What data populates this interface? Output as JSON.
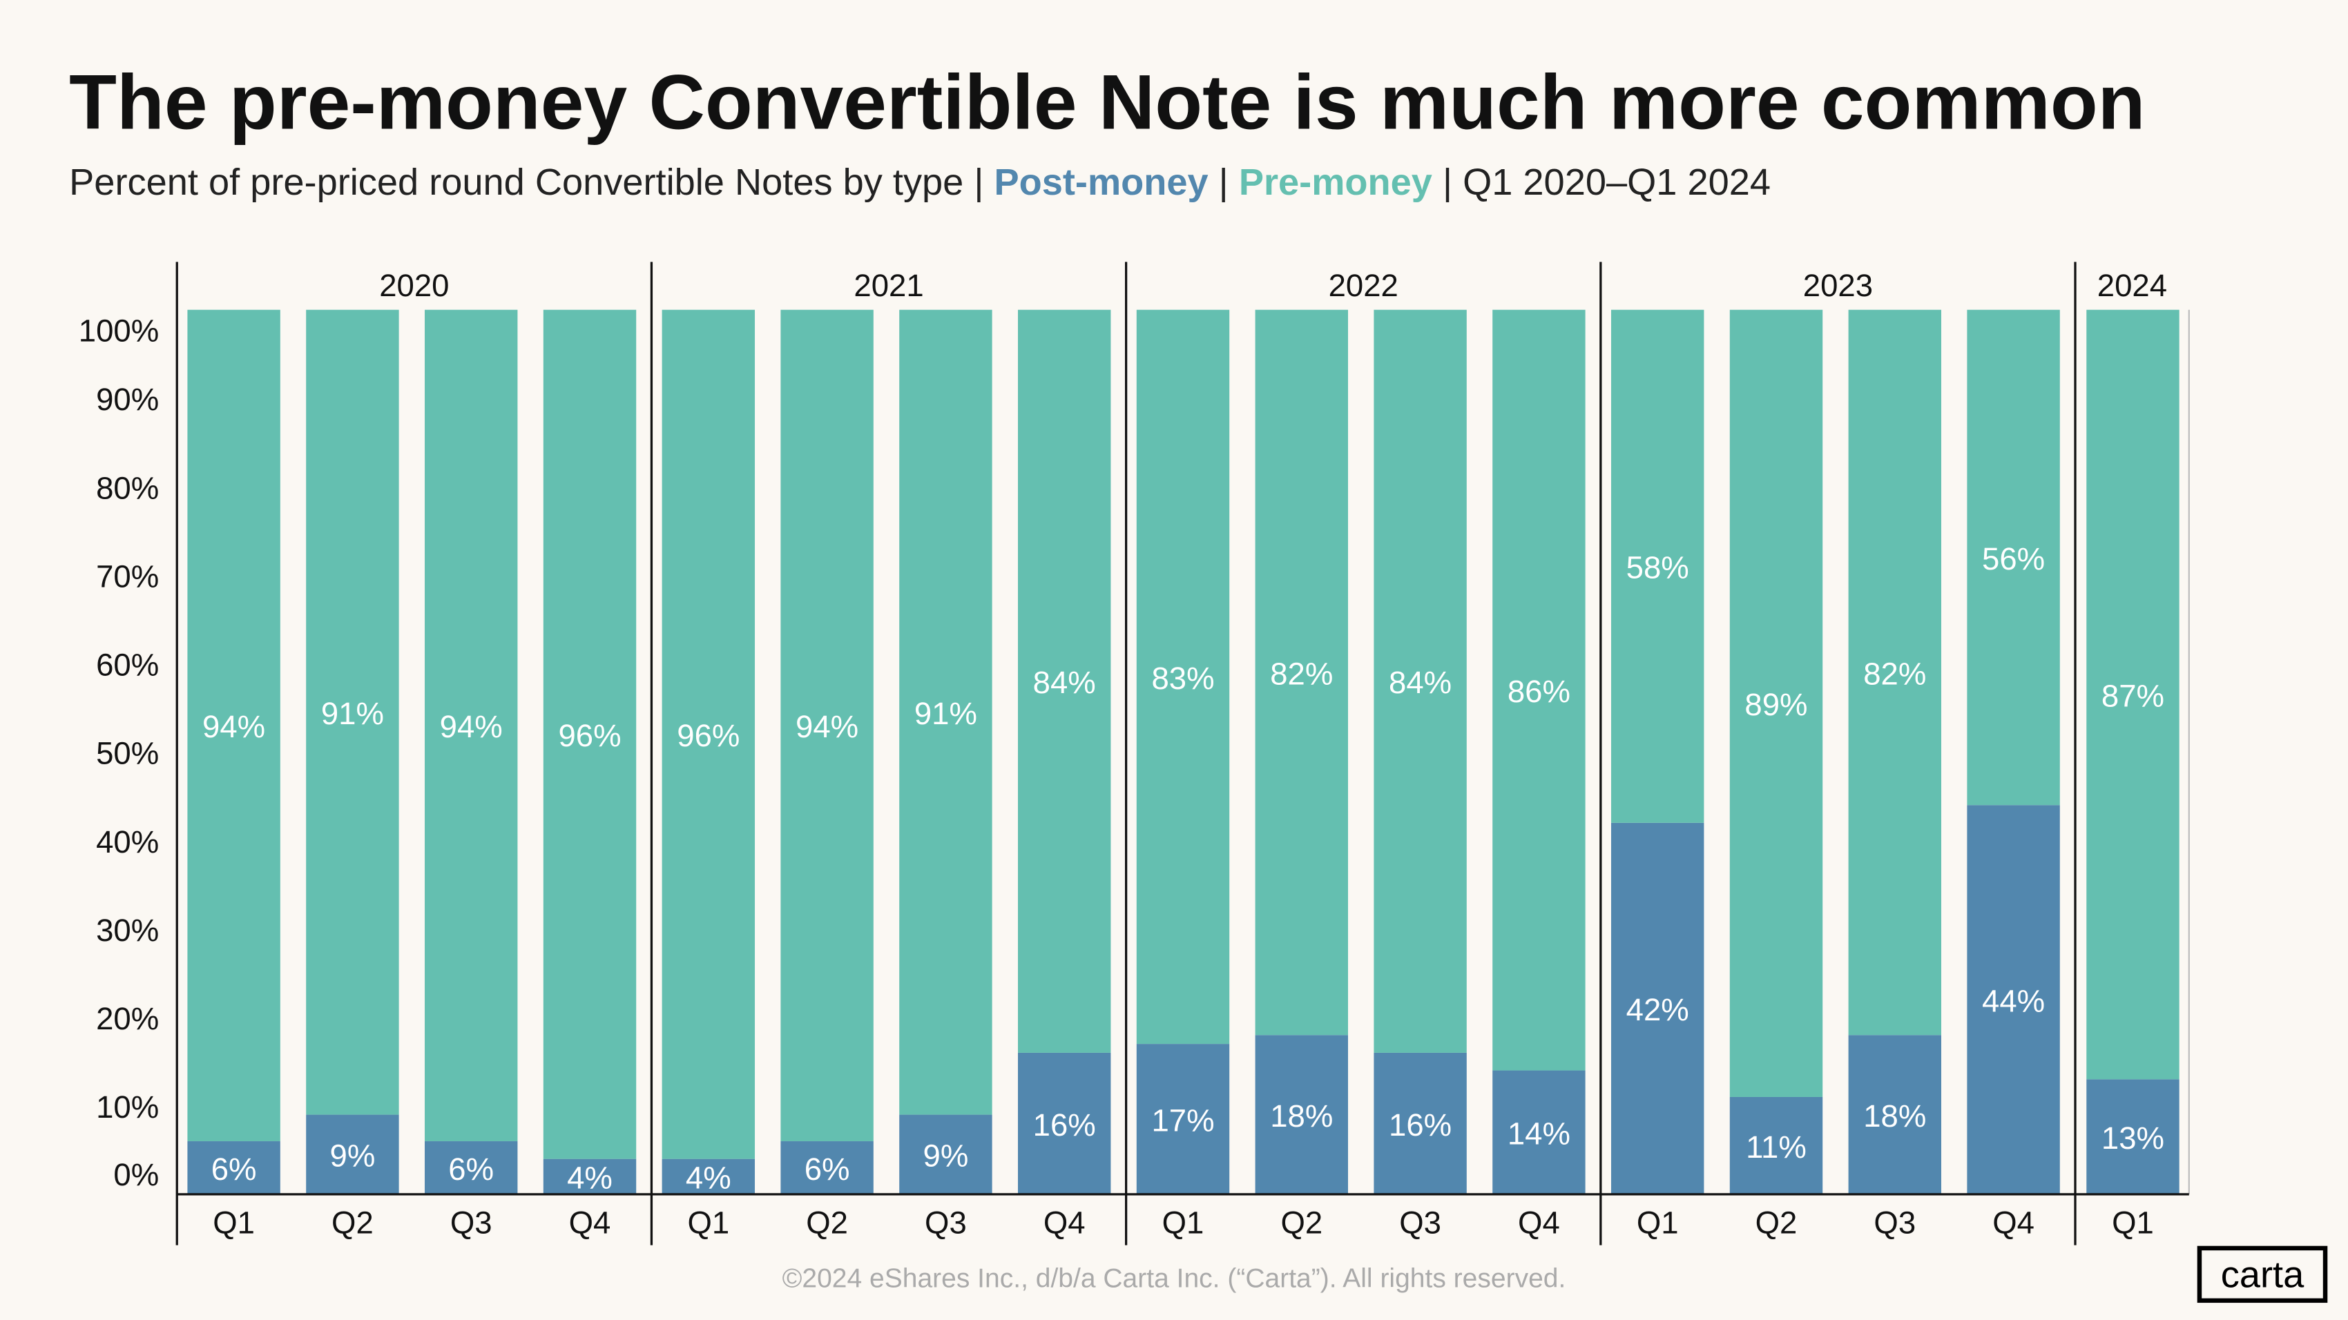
{
  "header": {
    "title": "The pre-money Convertible Note is much more common",
    "subtitle_prefix": "Percent of pre-priced round Convertible Notes by type | ",
    "legend_post": "Post-money",
    "separator": " | ",
    "legend_pre": "Pre-money",
    "subtitle_suffix": " |  Q1 2020–Q1 2024"
  },
  "footer": {
    "copyright": "©2024 eShares Inc., d/b/a Carta Inc. (“Carta”). All rights reserved.",
    "logo": "carta"
  },
  "colors": {
    "background": "#FBF8F3",
    "post_money": "#5287AE",
    "pre_money": "#64BFB0",
    "text": "#111111",
    "footer_text": "#AAAAAA"
  },
  "chart_data": {
    "type": "bar",
    "stacked": true,
    "title": "The pre-money Convertible Note is much more common",
    "ylim": [
      0,
      100
    ],
    "yticks": [
      "0%",
      "10%",
      "20%",
      "30%",
      "40%",
      "50%",
      "60%",
      "70%",
      "80%",
      "90%",
      "100%"
    ],
    "groups": [
      {
        "year": "2020",
        "quarters": [
          "Q1",
          "Q2",
          "Q3",
          "Q4"
        ]
      },
      {
        "year": "2021",
        "quarters": [
          "Q1",
          "Q2",
          "Q3",
          "Q4"
        ]
      },
      {
        "year": "2022",
        "quarters": [
          "Q1",
          "Q2",
          "Q3",
          "Q4"
        ]
      },
      {
        "year": "2023",
        "quarters": [
          "Q1",
          "Q2",
          "Q3",
          "Q4"
        ]
      },
      {
        "year": "2024",
        "quarters": [
          "Q1"
        ]
      }
    ],
    "series": [
      {
        "name": "Post-money",
        "values": [
          6,
          9,
          6,
          4,
          4,
          6,
          9,
          16,
          17,
          18,
          16,
          14,
          42,
          11,
          18,
          44,
          13
        ]
      },
      {
        "name": "Pre-money",
        "values": [
          94,
          91,
          94,
          96,
          96,
          94,
          91,
          84,
          83,
          82,
          84,
          86,
          58,
          89,
          82,
          56,
          87
        ]
      }
    ],
    "grid": false
  }
}
